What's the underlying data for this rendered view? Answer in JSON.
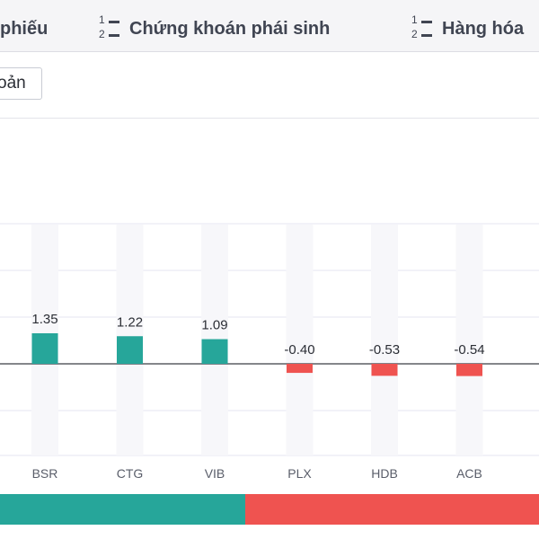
{
  "tabs": [
    {
      "label": "phiếu"
    },
    {
      "label": "Chứng khoán phái sinh",
      "icon": "sort-numeric-icon"
    },
    {
      "label": "Hàng hóa",
      "icon": "sort-numeric-icon"
    }
  ],
  "toolbar": {
    "select_label": "oản"
  },
  "colors": {
    "positive": "#26a69a",
    "negative": "#ef5350",
    "grid": "#e4e4f0",
    "column_band": "#f7f7fa",
    "axis_text": "#5a5e6a"
  },
  "chart_data": {
    "type": "bar",
    "categories": [
      "BSR",
      "CTG",
      "VIB",
      "PLX",
      "HDB",
      "ACB"
    ],
    "values": [
      1.35,
      1.22,
      1.09,
      -0.4,
      -0.53,
      -0.54
    ],
    "data_labels": [
      "1.35",
      "1.22",
      "1.09",
      "-0.40",
      "-0.53",
      "-0.54"
    ],
    "partial_label": "-",
    "title": "",
    "xlabel": "",
    "ylabel": "",
    "grid": true,
    "ylim": [
      -2,
      4
    ]
  },
  "breadth": {
    "positive_fraction": 0.455
  }
}
